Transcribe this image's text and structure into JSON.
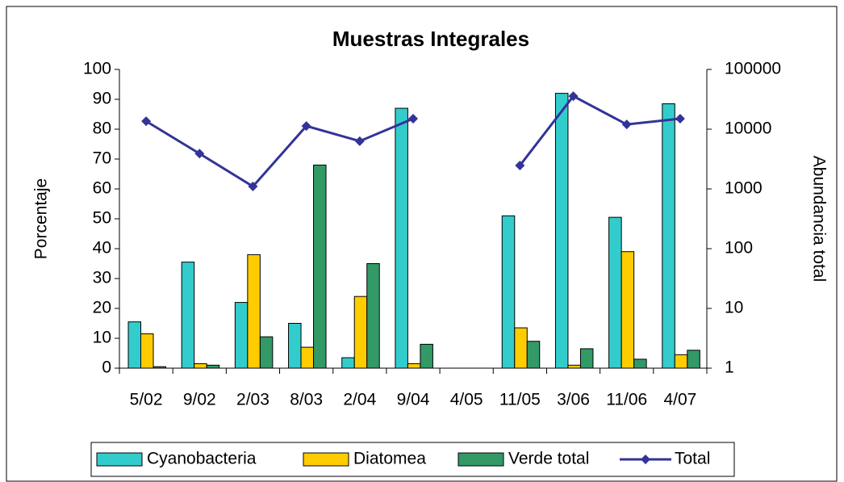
{
  "chart_data": {
    "type": "bar_line",
    "title": "Muestras Integrales",
    "y_label": "Porcentaje",
    "y2_label": "Abundancia total",
    "categories": [
      "5/02",
      "9/02",
      "2/03",
      "8/03",
      "2/04",
      "9/04",
      "4/05",
      "11/05",
      "3/06",
      "11/06",
      "4/07"
    ],
    "series": [
      {
        "name": "Cyanobacteria",
        "type": "bar",
        "color": "#33cccc",
        "values": [
          15.5,
          35.5,
          22,
          15,
          3.5,
          87,
          null,
          51,
          92,
          50.5,
          88.5
        ]
      },
      {
        "name": "Diatomea",
        "type": "bar",
        "color": "#ffcc00",
        "values": [
          11.5,
          1.5,
          38,
          7,
          24,
          1.5,
          null,
          13.5,
          1,
          39,
          4.5
        ]
      },
      {
        "name": "Verde total",
        "type": "bar",
        "color": "#339966",
        "values": [
          0.5,
          1,
          10.5,
          68,
          35,
          8,
          null,
          9,
          6.5,
          3,
          6
        ]
      },
      {
        "name": "Total",
        "type": "line",
        "axis": "y2",
        "color": "#333399",
        "values": [
          13600,
          3900,
          1100,
          11300,
          6300,
          15000,
          null,
          2470,
          35700,
          12000,
          15000
        ]
      }
    ],
    "ylim": [
      0,
      100
    ],
    "yticks": [
      0,
      10,
      20,
      30,
      40,
      50,
      60,
      70,
      80,
      90,
      100
    ],
    "y2lim": [
      1,
      100000
    ],
    "y2ticks": [
      1,
      10,
      100,
      1000,
      10000,
      100000
    ],
    "y2_log": true,
    "grid": false,
    "legend": "bottom"
  }
}
